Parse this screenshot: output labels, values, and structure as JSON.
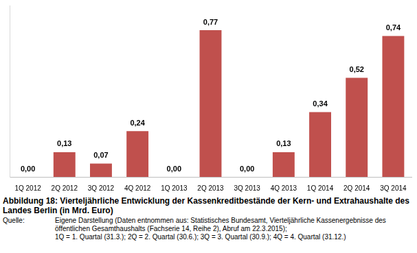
{
  "chart_data": {
    "type": "bar",
    "title": "Abbildung 18: Vierteljährliche Entwicklung der Kassenkreditbestände der Kern- und Extrahaushalte des Landes Berlin (in Mrd. Euro)",
    "source_label": "Quelle:",
    "source": [
      "Eigene Darstellung (Daten entnommen aus: Statistisches Bundesamt, Vierteljährliche Kassenergebnisse des öffentlichen Gesamthaushalts (Fachserie 14, Reihe 2), Abruf am 22.3.2015);",
      "1Q = 1. Quartal (31.3.);  2Q = 2. Quartal (30.6.); 3Q = 3. Quartal (30.9.); 4Q = 4. Quartal (31.12.)"
    ],
    "categories": [
      "1Q 2012",
      "2Q 2012",
      "3Q 2012",
      "4Q 2012",
      "1Q 2013",
      "2Q 2013",
      "3Q 2013",
      "4Q 2013",
      "1Q 2014",
      "2Q 2014",
      "3Q 2014"
    ],
    "values": [
      0,
      0.13,
      0.07,
      0.24,
      0,
      0.77,
      0,
      0.13,
      0.34,
      0.52,
      0.74
    ],
    "value_labels": [
      "0,00",
      "0,13",
      "0,07",
      "0,24",
      "0,00",
      "0,77",
      "0,00",
      "0,13",
      "0,34",
      "0,52",
      "0,74"
    ],
    "color": "#c0504d",
    "ylim": [
      0,
      0.9
    ],
    "grid": false,
    "legend": false,
    "data_labels": true,
    "tick_labels": "x"
  }
}
